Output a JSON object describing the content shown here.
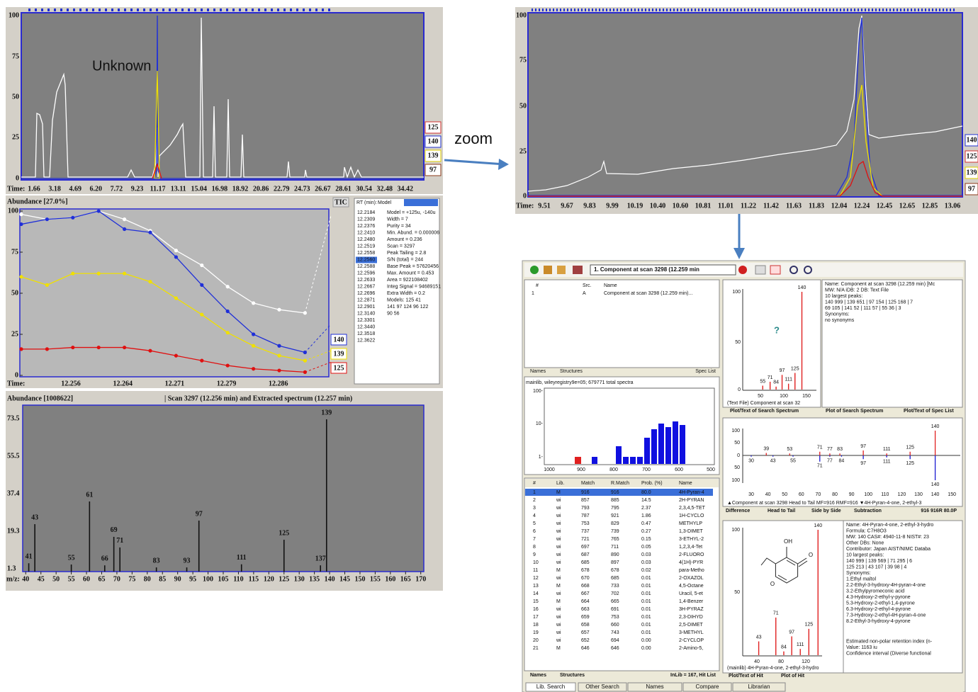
{
  "tic_panel": {
    "yticks": [
      "100",
      "75",
      "50",
      "25",
      "0"
    ],
    "time_label": "Time:",
    "times": [
      "1.66",
      "3.18",
      "4.69",
      "6.20",
      "7.72",
      "9.23",
      "11.17",
      "13.11",
      "15.04",
      "16.98",
      "18.92",
      "20.86",
      "22.79",
      "24.73",
      "26.67",
      "28.61",
      "30.54",
      "32.48",
      "34.42"
    ],
    "legend": [
      "125",
      "140",
      "139",
      "97"
    ],
    "annotation": "Unknown"
  },
  "zoom_label": "zoom",
  "zoom_panel": {
    "yticks": [
      "100",
      "75",
      "50",
      "25",
      "0"
    ],
    "time_label": "Time:",
    "times": [
      "9.51",
      "9.67",
      "9.83",
      "9.99",
      "10.19",
      "10.40",
      "10.60",
      "10.81",
      "11.01",
      "11.22",
      "11.42",
      "11.63",
      "11.83",
      "12.04",
      "12.24",
      "12.45",
      "12.65",
      "12.85",
      "13.06"
    ],
    "legend": [
      "140",
      "125",
      "139",
      "97"
    ]
  },
  "eic_panel": {
    "title": "Abundance [27.0%]",
    "tic_label": "TIC",
    "ylim": [
      0,
      100
    ],
    "yticks": [
      100,
      75,
      50,
      25,
      0
    ],
    "time_label": "Time:",
    "times": [
      "12.256",
      "12.264",
      "12.271",
      "12.279",
      "12.286"
    ],
    "series": [
      {
        "name": "TIC",
        "color": "#ffffff",
        "values": [
          98,
          95,
          96,
          100,
          95,
          88,
          76,
          67,
          54,
          44,
          40,
          38,
          97
        ]
      },
      {
        "name": "140",
        "color": "#1f2fd8",
        "values": [
          92,
          95,
          96,
          100,
          89,
          87,
          72,
          55,
          39,
          25,
          18,
          14,
          31
        ]
      },
      {
        "name": "139",
        "color": "#f0e000",
        "values": [
          60,
          55,
          62,
          62,
          62,
          57,
          47,
          37,
          26,
          18,
          12,
          9,
          15
        ]
      },
      {
        "name": "125",
        "color": "#e01010",
        "values": [
          16,
          16,
          17,
          17,
          17,
          15,
          12,
          9,
          6,
          4,
          3,
          2,
          8
        ]
      }
    ],
    "rt_header": [
      "RT (min):",
      "Model"
    ],
    "rt_list": [
      "12.2184",
      "12.2309",
      "12.2376",
      "12.2410",
      "12.2480",
      "12.2519",
      "12.2558",
      "12.2560",
      "12.2588",
      "12.2596",
      "12.2633",
      "12.2667",
      "12.2696",
      "12.2871",
      "12.2901",
      "12.3140",
      "12.3301",
      "12.3440",
      "12.3518",
      "12.3622"
    ],
    "model_info": [
      "Model = +125u, -140u",
      "Width = 7",
      "Purity = 34",
      "Min. Abund. = 0.000006",
      "Amount = 0.236",
      "Scan = 3297",
      "Peak Tailing = 2.8",
      "S/N (total) = 244",
      "Base Peak = 57620456",
      "Max. Amount = 0.453",
      "Area = 922108402",
      "Integ Signal = 94689151",
      "Extra Width = 0.2",
      "Models: 125 41",
      "141 97 124 96 122",
      "90 56"
    ]
  },
  "spectrum_panel": {
    "title": "Abundance [1008622]",
    "subtitle": "| Scan 3297 (12.256 min) and  Extracted spectrum (12.257 min)",
    "ylim": [
      0,
      80
    ],
    "yticks": [
      73.5,
      55.5,
      37.4,
      19.3,
      1.3
    ],
    "xlabel": "m/z:",
    "xlim": [
      39,
      171
    ],
    "xticks": [
      40,
      45,
      50,
      55,
      60,
      65,
      70,
      75,
      80,
      85,
      90,
      95,
      100,
      105,
      110,
      115,
      120,
      125,
      130,
      135,
      140,
      145,
      150,
      155,
      160,
      165,
      170
    ],
    "peaks": {
      "mz": [
        41,
        43,
        55,
        61,
        66,
        69,
        71,
        83,
        93,
        97,
        111,
        125,
        137,
        139
      ],
      "abundance": [
        4,
        22.8,
        3.4,
        33.7,
        3,
        16.7,
        11.6,
        2,
        2,
        24.5,
        3.5,
        15.3,
        3,
        73.2
      ]
    }
  },
  "nist": {
    "toolbar_component": "1. Component at scan 3298 (12.259 min",
    "list_header": [
      "#",
      "Src.",
      "Name"
    ],
    "list_row": [
      "1",
      "A",
      "Component at scan 3298 (12.259 min)..."
    ],
    "list_tabs": [
      "Names",
      "Structures",
      "Spec List"
    ],
    "histogram_caption": "mainlib, wileyregistry9e=05;  679771 total spectra",
    "histogram_yticks": [
      "100-",
      "10-",
      "1-"
    ],
    "histogram_xticks": [
      "1000",
      "900",
      "800",
      "700",
      "600",
      "500"
    ],
    "hit_header": [
      "#",
      "Lib.",
      "Match",
      "R.Match",
      "Prob. (%)",
      "Name"
    ],
    "hits": [
      [
        "1",
        "M",
        "916",
        "916",
        "80.0",
        "4H-Pyran-4"
      ],
      [
        "2",
        "wi",
        "857",
        "885",
        "14.5",
        "2H-PYRAN"
      ],
      [
        "3",
        "wi",
        "793",
        "795",
        "2.37",
        "2,3,4,5-TET"
      ],
      [
        "4",
        "wi",
        "787",
        "921",
        "1.86",
        "1H-CYCLO"
      ],
      [
        "5",
        "wi",
        "753",
        "829",
        "0.47",
        "METHYLP"
      ],
      [
        "6",
        "wi",
        "737",
        "739",
        "0.27",
        "1,3-DIMET"
      ],
      [
        "7",
        "wi",
        "721",
        "765",
        "0.15",
        "3-ETHYL-2"
      ],
      [
        "8",
        "wi",
        "697",
        "711",
        "0.05",
        "1,2,3,4-Tet"
      ],
      [
        "9",
        "wi",
        "687",
        "890",
        "0.03",
        "2-FLUORO"
      ],
      [
        "10",
        "wi",
        "685",
        "897",
        "0.03",
        "4(1H)-PYR"
      ],
      [
        "11",
        "M",
        "678",
        "678",
        "0.02",
        "para-Metho"
      ],
      [
        "12",
        "wi",
        "670",
        "685",
        "0.01",
        "2-OXAZOL"
      ],
      [
        "13",
        "M",
        "668",
        "733",
        "0.01",
        "4,5-Octane"
      ],
      [
        "14",
        "wi",
        "667",
        "702",
        "0.01",
        "Uracil, 5-et"
      ],
      [
        "15",
        "M",
        "664",
        "665",
        "0.01",
        "1,4-Benzer"
      ],
      [
        "16",
        "wi",
        "663",
        "691",
        "0.01",
        "3H-PYRAZ"
      ],
      [
        "17",
        "wi",
        "659",
        "753",
        "0.01",
        "2,3-DIHYD"
      ],
      [
        "18",
        "wi",
        "658",
        "660",
        "0.01",
        "2,5-DIMET"
      ],
      [
        "19",
        "wi",
        "657",
        "743",
        "0.01",
        "3-METHYL"
      ],
      [
        "20",
        "wi",
        "652",
        "694",
        "0.00",
        "2-CYCLOP"
      ],
      [
        "21",
        "M",
        "646",
        "646",
        "0.00",
        "2-Amino-5,"
      ]
    ],
    "hit_tabs": [
      "Names",
      "Structures",
      "InLib = 167, Hit List"
    ],
    "search_spectrum": {
      "yticks": [
        "100",
        "50",
        "0"
      ],
      "xticks": [
        "50",
        "100",
        "150"
      ],
      "mz": [
        55,
        71,
        84,
        97,
        111,
        125,
        140
      ],
      "abundance": [
        4,
        8,
        3,
        15,
        6,
        17,
        100
      ],
      "unknown_mark": "?",
      "caption": "(Text File) Component at scan 32"
    },
    "search_info": [
      "Name: Component at scan 3298 (12.259 min) [Mc",
      "MW: N/A iDB: 2 DB: Text File",
      "10 largest peaks:",
      "140 999 | 139 651 | 97 154 | 125 168 | 7",
      "69 105 | 141 52 | 111 57 | 55 36 | 3",
      "Synonyms:",
      "no synonyms"
    ],
    "search_tabs": [
      "Plot/Text of Search Spectrum",
      "Plot of Search Spectrum",
      "Plot/Text of Spec List"
    ],
    "head_to_tail": {
      "yticks": [
        "100",
        "50",
        "0",
        "50",
        "100"
      ],
      "xticks": [
        "30",
        "40",
        "50",
        "60",
        "70",
        "80",
        "90",
        "100",
        "110",
        "120",
        "130",
        "140",
        "150"
      ],
      "top_mz": [
        39,
        53,
        71,
        77,
        83,
        97,
        111,
        125,
        140
      ],
      "top_abundance": [
        10,
        8,
        15,
        8,
        8,
        20,
        8,
        15,
        100
      ],
      "bottom_mz": [
        30,
        43,
        55,
        71,
        77,
        84,
        97,
        111,
        125,
        140
      ],
      "bottom_abundance": [
        5,
        5,
        5,
        25,
        5,
        5,
        15,
        8,
        15,
        100
      ],
      "caption": "▲Component at scan 3298 Head to Tail MF=916 RMF=916 ▼4H-Pyran-4-one, 2-ethyl-3",
      "tabs": [
        "Difference",
        "Head to Tail",
        "Side by Side",
        "Subtraction"
      ],
      "scores": "916 916R 80.0P"
    },
    "hit_spectrum": {
      "yticks": [
        "100",
        "50"
      ],
      "xticks": [
        "40",
        "80",
        "120"
      ],
      "mz": [
        43,
        71,
        84,
        97,
        111,
        125,
        140
      ],
      "abundance": [
        11,
        30,
        3,
        15,
        5,
        21,
        100
      ],
      "structure_labels": [
        "OH",
        "O",
        "O"
      ],
      "caption": "(mainlib) 4H-Pyran-4-one, 2-ethyl-3-hydro",
      "tabs": [
        "Plot/Text of Hit",
        "Plot of Hit"
      ]
    },
    "hit_info": [
      "Name: 4H-Pyran-4-one, 2-ethyl-3-hydro",
      "Formula: C7H8O3",
      "MW: 140 CAS#: 4940-11-8 NIST#: 23",
      "Other DBs: None",
      "Contributor: Japan AIST/NIMC Databa",
      "10 largest peaks:",
      "140 999 | 139 569 | 71 295 | 6",
      "125 213 | 43 107 | 39 98 | 4",
      "Synonyms:",
      "1.Ethyl maltol",
      "2.2-Ethyl-3-hydroxy-4H-pyran-4-one",
      "3.2-Ethylpyromeconic acid",
      "4.3-Hydroxy-2-ethyl-γ-pyrone",
      "5.3-Hydroxy-2-ethyl-1,4-pyrone",
      "6.3-Hydroxy-2-ethyl-4-pyrone",
      "7.3-Hydroxy-2-ethyl-4H-pyran-4-one",
      "8.2-Ethyl-3-hydroxy-4-pyrone",
      "Estimated non-polar retention index (n-",
      "Value: 1163 iu",
      "Confidence interval (Diverse functional"
    ],
    "bottom_tabs": [
      "Lib. Search",
      "Other Search",
      "Names",
      "Compare",
      "Librarian"
    ]
  }
}
